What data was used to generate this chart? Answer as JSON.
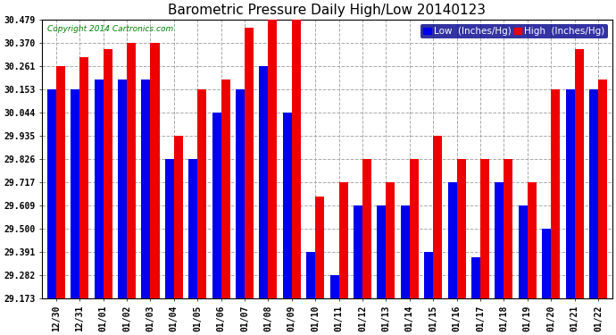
{
  "title": "Barometric Pressure Daily High/Low 20140123",
  "copyright": "Copyright 2014 Cartronics.com",
  "legend_low": "Low  (Inches/Hg)",
  "legend_high": "High  (Inches/Hg)",
  "dates": [
    "12/30",
    "12/31",
    "01/01",
    "01/02",
    "01/03",
    "01/04",
    "01/05",
    "01/06",
    "01/07",
    "01/08",
    "01/09",
    "01/10",
    "01/11",
    "01/12",
    "01/13",
    "01/14",
    "01/15",
    "01/16",
    "01/17",
    "01/18",
    "01/19",
    "01/20",
    "01/21",
    "01/22"
  ],
  "low": [
    30.153,
    30.153,
    30.197,
    30.197,
    30.197,
    29.826,
    29.826,
    30.044,
    30.153,
    30.261,
    30.044,
    29.391,
    29.282,
    29.609,
    29.609,
    29.609,
    29.391,
    29.717,
    29.365,
    29.717,
    29.609,
    29.5,
    30.153,
    30.153
  ],
  "high": [
    30.261,
    30.3,
    30.34,
    30.37,
    30.37,
    29.935,
    30.153,
    30.197,
    30.44,
    30.479,
    30.479,
    29.65,
    29.717,
    29.826,
    29.717,
    29.826,
    29.935,
    29.826,
    29.826,
    29.826,
    29.717,
    30.153,
    30.34,
    30.197
  ],
  "ylim_min": 29.173,
  "ylim_max": 30.479,
  "yticks": [
    29.173,
    29.282,
    29.391,
    29.5,
    29.609,
    29.717,
    29.826,
    29.935,
    30.044,
    30.153,
    30.261,
    30.37,
    30.479
  ],
  "bar_width": 0.38,
  "low_color": "#0000ee",
  "high_color": "#ee0000",
  "background_color": "#ffffff",
  "grid_color": "#aaaaaa",
  "title_fontsize": 11,
  "tick_fontsize": 7,
  "legend_fontsize": 7.5
}
